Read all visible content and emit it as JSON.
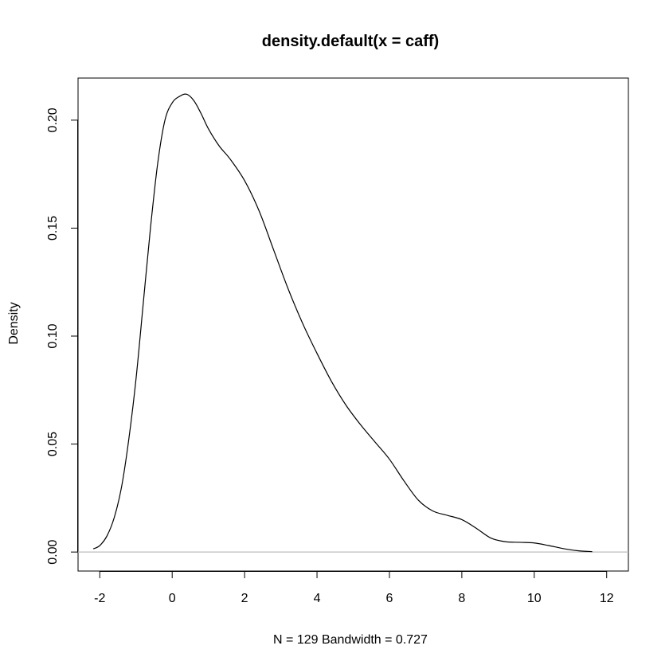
{
  "chart_data": {
    "type": "line",
    "title": "density.default(x = caff)",
    "xlabel": "N = 129   Bandwidth = 0.727",
    "ylabel": "Density",
    "xlim": [
      -2.6,
      12.6
    ],
    "ylim": [
      -0.0088,
      0.2195
    ],
    "x_ticks": [
      -2,
      0,
      2,
      4,
      6,
      8,
      10,
      12
    ],
    "y_ticks": [
      0.0,
      0.05,
      0.1,
      0.15,
      0.2
    ],
    "x_tick_labels": [
      "-2",
      "0",
      "2",
      "4",
      "6",
      "8",
      "10",
      "12"
    ],
    "y_tick_labels": [
      "0.00",
      "0.05",
      "0.10",
      "0.15",
      "0.20"
    ],
    "baseline": 0,
    "colors": {
      "line": "#000000",
      "baseline": "#bebebe",
      "frame": "#000000"
    },
    "series": [
      {
        "x": [
          -2.18,
          -2.0,
          -1.8,
          -1.6,
          -1.4,
          -1.2,
          -1.0,
          -0.8,
          -0.6,
          -0.4,
          -0.2,
          0.0,
          0.2,
          0.4,
          0.6,
          0.8,
          1.0,
          1.3,
          1.6,
          2.0,
          2.4,
          2.8,
          3.2,
          3.6,
          4.0,
          4.4,
          4.8,
          5.2,
          5.6,
          6.0,
          6.4,
          6.8,
          7.2,
          7.6,
          8.0,
          8.4,
          8.8,
          9.2,
          9.6,
          10.0,
          10.4,
          10.8,
          11.2,
          11.6
        ],
        "y": [
          0.0015,
          0.003,
          0.0075,
          0.016,
          0.03,
          0.052,
          0.08,
          0.115,
          0.15,
          0.18,
          0.2,
          0.208,
          0.211,
          0.212,
          0.209,
          0.203,
          0.196,
          0.188,
          0.182,
          0.172,
          0.158,
          0.14,
          0.122,
          0.106,
          0.092,
          0.079,
          0.068,
          0.059,
          0.051,
          0.043,
          0.033,
          0.024,
          0.019,
          0.017,
          0.015,
          0.011,
          0.0065,
          0.0048,
          0.0045,
          0.0042,
          0.003,
          0.0016,
          0.0006,
          0.0002
        ]
      }
    ]
  }
}
